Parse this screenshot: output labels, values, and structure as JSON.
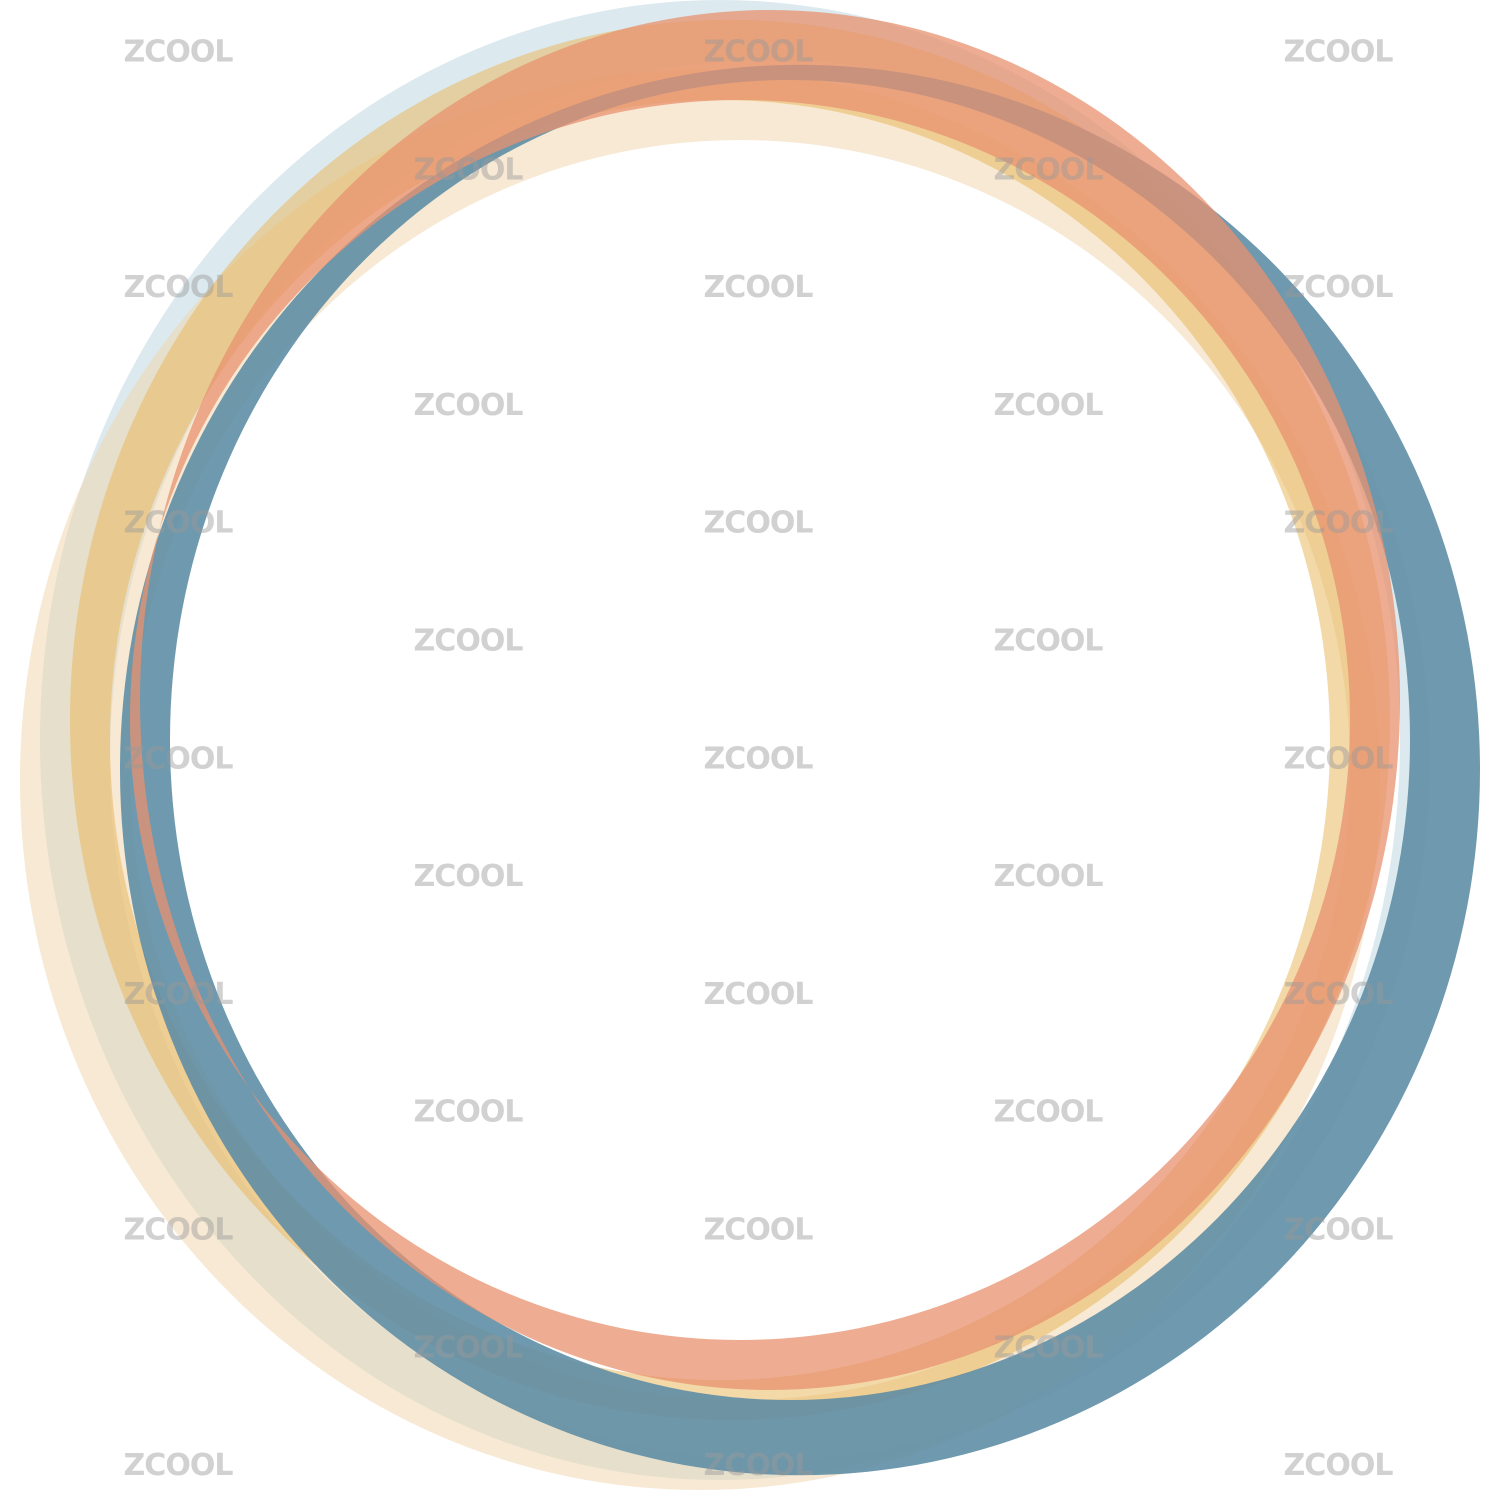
{
  "watermark": "ZCOOL"
}
